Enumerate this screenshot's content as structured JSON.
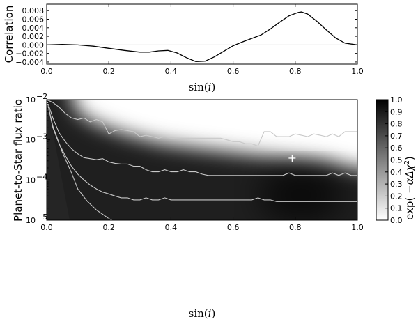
{
  "chart_data": [
    {
      "type": "line",
      "xlabel": "sin(i)",
      "ylabel": "Correlation",
      "xlim": [
        0.0,
        1.0
      ],
      "ylim": [
        -0.0045,
        0.0095
      ],
      "xticks": [
        "0.0",
        "0.2",
        "0.4",
        "0.6",
        "0.8",
        "1.0"
      ],
      "yticks": [
        "−0.004",
        "−0.002",
        "0.000",
        "0.002",
        "0.004",
        "0.006",
        "0.008"
      ],
      "zero_line": true,
      "series": [
        {
          "x": [
            0.0,
            0.05,
            0.1,
            0.15,
            0.2,
            0.25,
            0.3,
            0.33,
            0.36,
            0.39,
            0.42,
            0.45,
            0.48,
            0.51,
            0.54,
            0.57,
            0.6,
            0.63,
            0.66,
            0.69,
            0.72,
            0.75,
            0.78,
            0.81,
            0.82,
            0.84,
            0.87,
            0.9,
            0.93,
            0.96,
            1.0
          ],
          "y": [
            0.0,
            0.0001,
            0.0,
            -0.0003,
            -0.0008,
            -0.0013,
            -0.0017,
            -0.0017,
            -0.0014,
            -0.0013,
            -0.0019,
            -0.003,
            -0.0039,
            -0.0038,
            -0.0028,
            -0.0015,
            -0.0002,
            0.0007,
            0.0015,
            0.0023,
            0.0037,
            0.0053,
            0.0068,
            0.0076,
            0.0077,
            0.0072,
            0.0055,
            0.0035,
            0.0016,
            0.0004,
            0.0
          ]
        }
      ]
    },
    {
      "type": "heatmap",
      "xlabel": "sin(i)",
      "ylabel": "Planet-to-Star flux ratio",
      "xlim": [
        0.0,
        1.0
      ],
      "ylim": [
        1e-05,
        0.01
      ],
      "yscale": "log",
      "xticks": [
        "0.0",
        "0.2",
        "0.4",
        "0.6",
        "0.8",
        "1.0"
      ],
      "colormap": "gray_r",
      "colorbar": {
        "label": "exp( −αΔχ²)",
        "range": [
          0.0,
          1.0
        ],
        "ticks": [
          "0.0",
          "0.1",
          "0.2",
          "0.3",
          "0.4",
          "0.5",
          "0.6",
          "0.7",
          "0.8",
          "0.9",
          "1.0"
        ]
      },
      "best_fit_marker": {
        "x": 0.79,
        "y": 0.00035
      },
      "contours": [
        {
          "x": [
            0.0,
            0.02,
            0.05,
            0.08,
            0.1,
            0.13,
            0.16,
            0.2,
            0.25,
            0.3
          ],
          "y": [
            0.01,
            0.0022,
            0.0005,
            0.00015,
            6e-05,
            3e-05,
            1.8e-05,
            1.1e-05,
            7e-06,
            5e-06
          ]
        },
        {
          "x": [
            0.0,
            0.02,
            0.04,
            0.06,
            0.08,
            0.1,
            0.12,
            0.14,
            0.16,
            0.18,
            0.2,
            0.22,
            0.24,
            0.26,
            0.28,
            0.3,
            0.32,
            0.34,
            0.36,
            0.38,
            0.4,
            0.42,
            0.44,
            0.46,
            0.48,
            0.5,
            0.52,
            0.54,
            0.56,
            0.58,
            0.6,
            0.62,
            0.64,
            0.66,
            0.68,
            0.7,
            0.72,
            0.74,
            0.76,
            0.78,
            0.8,
            0.82,
            0.84,
            0.86,
            0.88,
            0.9,
            0.92,
            0.94,
            0.96,
            0.98,
            1.0
          ],
          "y": [
            0.01,
            0.002,
            0.0008,
            0.0004,
            0.00022,
            0.00014,
            0.0001,
            7.5e-05,
            6e-05,
            5e-05,
            4.5e-05,
            4e-05,
            3.6e-05,
            3.6e-05,
            3.2e-05,
            3.2e-05,
            3.6e-05,
            3.2e-05,
            3.2e-05,
            3.6e-05,
            3.2e-05,
            3.2e-05,
            3.2e-05,
            3.2e-05,
            3.2e-05,
            3.2e-05,
            3.2e-05,
            3.2e-05,
            3.2e-05,
            3.2e-05,
            3.2e-05,
            3.2e-05,
            3.2e-05,
            3.2e-05,
            3.6e-05,
            3.2e-05,
            3.2e-05,
            2.9e-05,
            2.9e-05,
            2.9e-05,
            2.9e-05,
            2.9e-05,
            2.9e-05,
            2.9e-05,
            2.9e-05,
            2.9e-05,
            2.9e-05,
            2.9e-05,
            2.9e-05,
            2.9e-05,
            2.9e-05
          ]
        },
        {
          "x": [
            0.0,
            0.02,
            0.04,
            0.06,
            0.08,
            0.1,
            0.12,
            0.14,
            0.16,
            0.18,
            0.2,
            0.22,
            0.24,
            0.26,
            0.28,
            0.3,
            0.32,
            0.34,
            0.36,
            0.38,
            0.4,
            0.42,
            0.44,
            0.46,
            0.48,
            0.5,
            0.52,
            0.54,
            0.56,
            0.58,
            0.6,
            0.62,
            0.64,
            0.66,
            0.68,
            0.7,
            0.72,
            0.74,
            0.76,
            0.78,
            0.8,
            0.82,
            0.84,
            0.86,
            0.88,
            0.9,
            0.92,
            0.94,
            0.96,
            0.98,
            1.0
          ],
          "y": [
            0.01,
            0.0035,
            0.0015,
            0.0009,
            0.0006,
            0.00045,
            0.00036,
            0.00034,
            0.00032,
            0.00034,
            0.00028,
            0.00026,
            0.00025,
            0.00025,
            0.00022,
            0.00022,
            0.00018,
            0.00016,
            0.00016,
            0.00018,
            0.00016,
            0.00016,
            0.00018,
            0.00016,
            0.00016,
            0.00014,
            0.00013,
            0.00013,
            0.00013,
            0.00013,
            0.00013,
            0.00013,
            0.00013,
            0.00013,
            0.00013,
            0.00013,
            0.00013,
            0.00013,
            0.00013,
            0.00015,
            0.00013,
            0.00013,
            0.00013,
            0.00013,
            0.00013,
            0.00013,
            0.00015,
            0.00013,
            0.00015,
            0.00013,
            0.00013
          ]
        },
        {
          "x": [
            0.0,
            0.02,
            0.04,
            0.06,
            0.08,
            0.1,
            0.12,
            0.14,
            0.16,
            0.18,
            0.2,
            0.22,
            0.24,
            0.26,
            0.28,
            0.3,
            0.32,
            0.34,
            0.36,
            0.38,
            0.4,
            0.42,
            0.44,
            0.46,
            0.48,
            0.5,
            0.52,
            0.54,
            0.56,
            0.58,
            0.6,
            0.62,
            0.64,
            0.66,
            0.68,
            0.7,
            0.72,
            0.74,
            0.76,
            0.78,
            0.8,
            0.82,
            0.84,
            0.86,
            0.88,
            0.9,
            0.92,
            0.94,
            0.96,
            0.98,
            1.0
          ],
          "y": [
            0.01,
            0.0085,
            0.0065,
            0.0045,
            0.0035,
            0.0032,
            0.0035,
            0.0028,
            0.0032,
            0.0028,
            0.0014,
            0.0017,
            0.0018,
            0.0017,
            0.0016,
            0.0012,
            0.0013,
            0.0012,
            0.0011,
            0.0012,
            0.0011,
            0.0011,
            0.0011,
            0.0011,
            0.0011,
            0.0011,
            0.0011,
            0.0011,
            0.0011,
            0.001,
            0.0009,
            0.0009,
            0.0008,
            0.0008,
            0.0007,
            0.0016,
            0.0016,
            0.0012,
            0.0012,
            0.0012,
            0.0014,
            0.0013,
            0.0012,
            0.0014,
            0.0013,
            0.0012,
            0.0014,
            0.0012,
            0.0016,
            0.0016,
            0.0016
          ]
        }
      ]
    }
  ]
}
